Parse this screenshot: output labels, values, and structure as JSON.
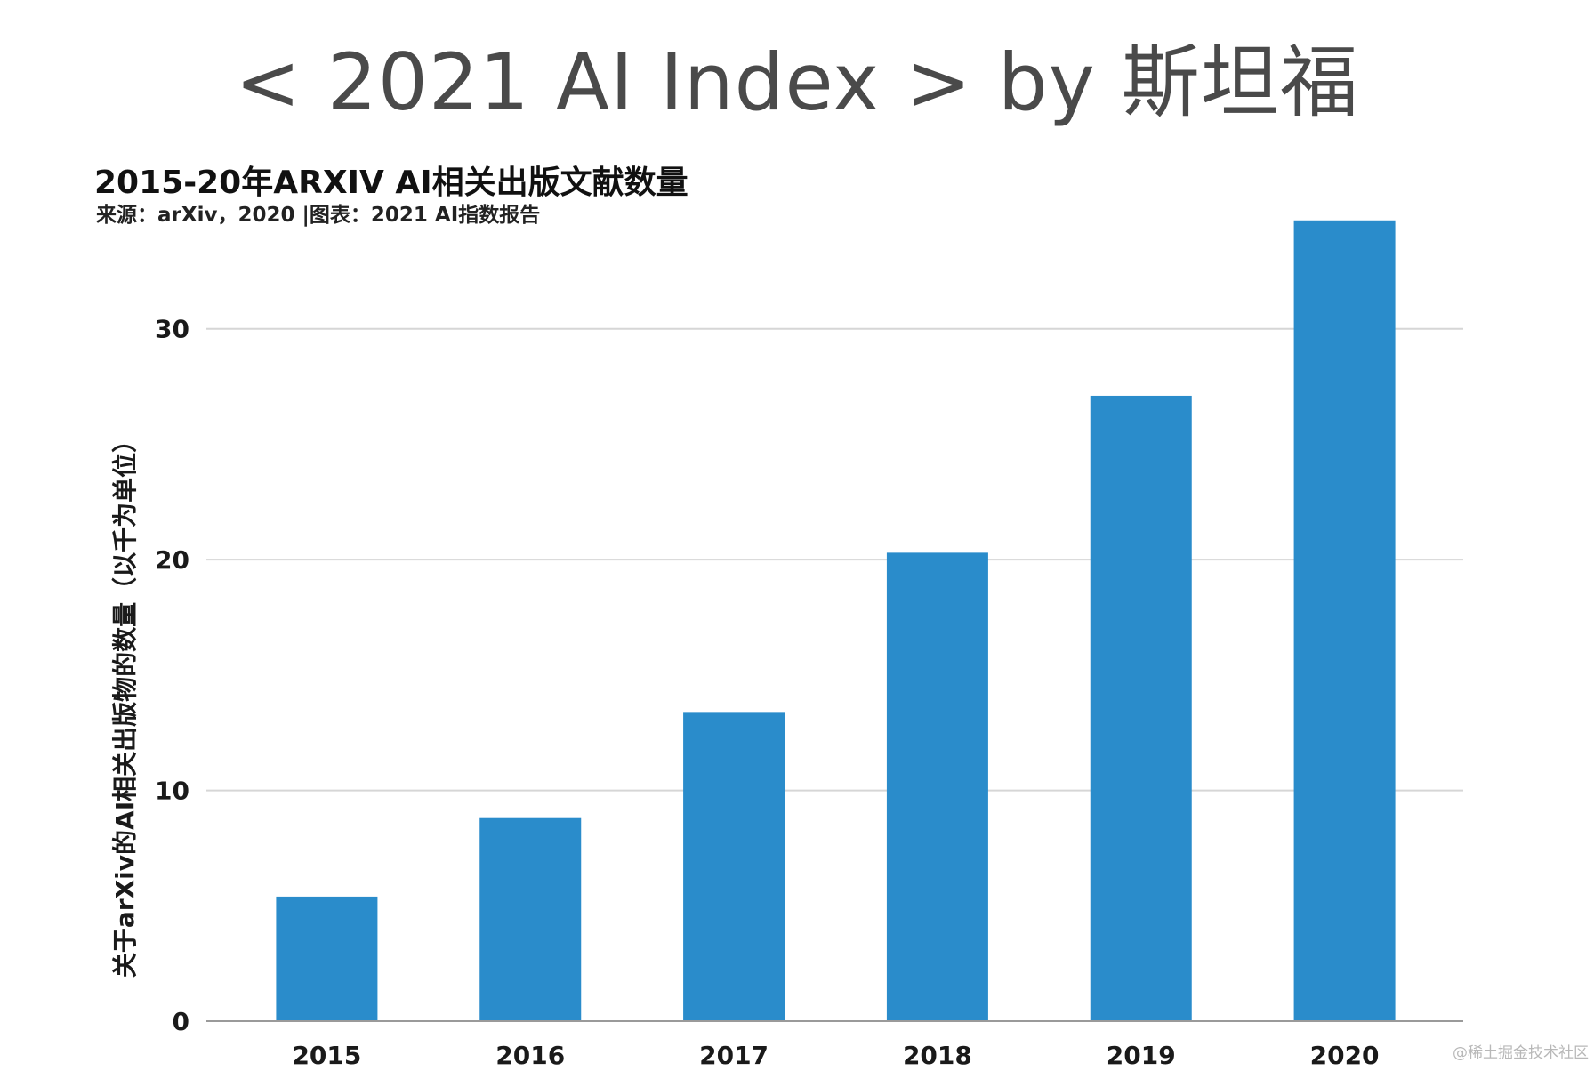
{
  "slide": {
    "title": "< 2021 AI Index > by 斯坦福",
    "watermark": "@稀土掘金技术社区"
  },
  "chart_data": {
    "type": "bar",
    "title": "2015-20年ARXIV AI相关出版文献数量",
    "subtitle": "来源：arXiv，2020 |图表：2021 AI指数报告",
    "xlabel": "",
    "ylabel": "关于arXiv的AI相关出版物的数量（以千为单位）",
    "categories": [
      "2015",
      "2016",
      "2017",
      "2018",
      "2019",
      "2020"
    ],
    "values": [
      5.4,
      8.8,
      13.4,
      20.3,
      27.1,
      34.7
    ],
    "y_ticks": [
      0,
      10,
      20,
      30
    ],
    "ylim": [
      0,
      35
    ],
    "grid": true,
    "bar_color": "#2a8ccb",
    "grid_color": "#d6d6d6",
    "axis_color": "#9a9a9a"
  }
}
